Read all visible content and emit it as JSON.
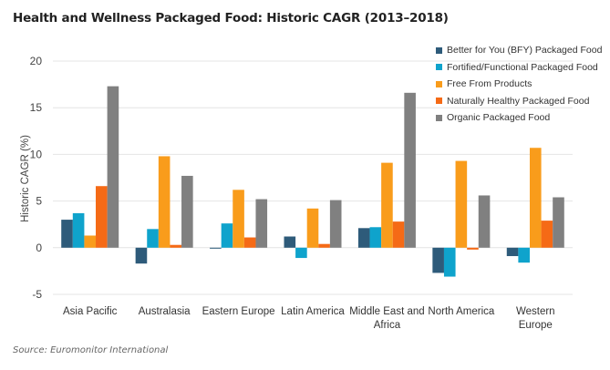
{
  "title": "Health and Wellness Packaged Food: Historic CAGR (2013–2018)",
  "source": "Source: Euromonitor International",
  "chart_data": {
    "type": "bar",
    "title": "Health and Wellness Packaged Food: Historic CAGR (2013–2018)",
    "xlabel": "",
    "ylabel": "Historic CAGR (%)",
    "ylim": [
      -5,
      20
    ],
    "yticks": [
      -5,
      0,
      5,
      10,
      15,
      20
    ],
    "grid": true,
    "legend_position": "top-right",
    "categories": [
      [
        "Asia Pacific"
      ],
      [
        "Australasia"
      ],
      [
        "Eastern Europe"
      ],
      [
        "Latin America"
      ],
      [
        "Middle East and",
        "Africa"
      ],
      [
        "North America"
      ],
      [
        "Western",
        "Europe"
      ]
    ],
    "series": [
      {
        "name": "Better for You (BFY) Packaged Food",
        "color": "#2e5b7a",
        "values": [
          3.0,
          -1.7,
          -0.1,
          1.2,
          2.1,
          -2.7,
          -0.9
        ]
      },
      {
        "name": "Fortified/Functional Packaged Food",
        "color": "#0fa3cc",
        "values": [
          3.7,
          2.0,
          2.6,
          -1.1,
          2.2,
          -3.1,
          -1.6
        ]
      },
      {
        "name": "Free From Products",
        "color": "#f99c1b",
        "values": [
          1.3,
          9.8,
          6.2,
          4.2,
          9.1,
          9.3,
          10.7
        ]
      },
      {
        "name": "Naturally Healthy Packaged Food",
        "color": "#f56a16",
        "values": [
          6.6,
          0.3,
          1.1,
          0.4,
          2.8,
          -0.2,
          2.9
        ]
      },
      {
        "name": "Organic Packaged Food",
        "color": "#808080",
        "values": [
          17.3,
          7.7,
          5.2,
          5.1,
          16.6,
          5.6,
          5.4
        ]
      }
    ]
  }
}
